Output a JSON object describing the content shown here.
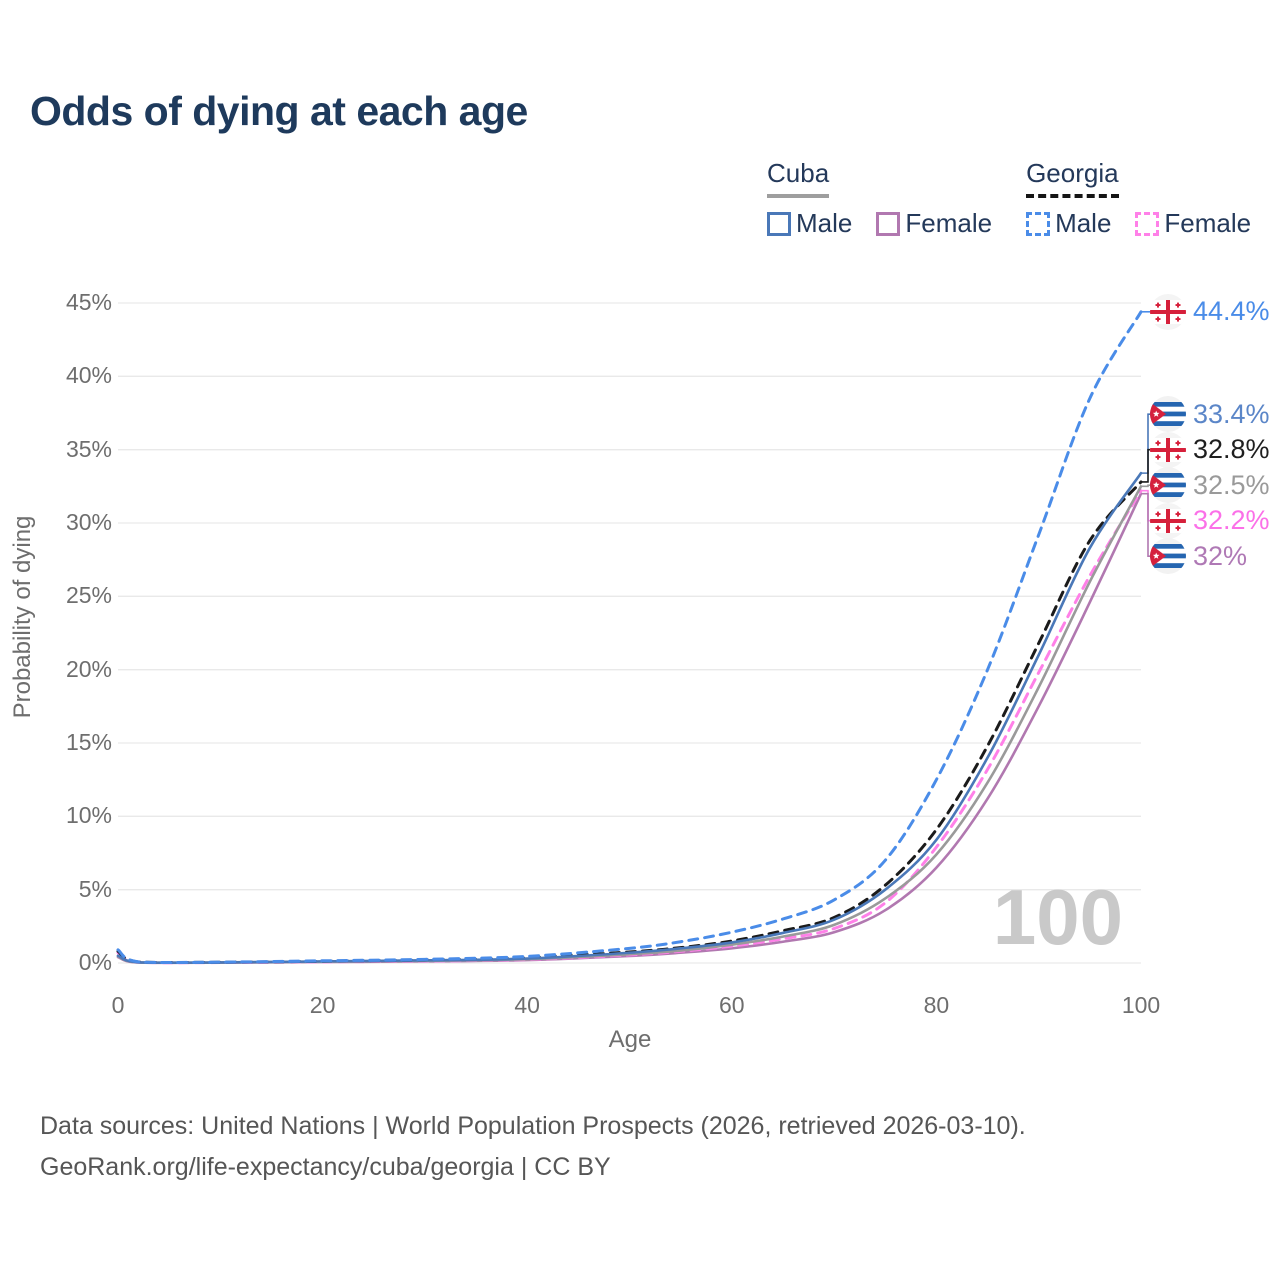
{
  "header": {
    "title": "Odds of dying at each age"
  },
  "legend": {
    "cuba": {
      "label": "Cuba",
      "male": "Male",
      "female": "Female"
    },
    "georgia": {
      "label": "Georgia",
      "male": "Male",
      "female": "Female"
    }
  },
  "chart_data": {
    "type": "line",
    "title": "Odds of dying at each age",
    "xlabel": "Age",
    "ylabel": "Probability of dying",
    "xlim": [
      0,
      100
    ],
    "ylim": [
      0,
      45
    ],
    "grid": "horizontal-only",
    "legend_position": "top-right",
    "watermark": "100",
    "x_ticks": [
      0,
      20,
      40,
      60,
      80,
      100
    ],
    "y_ticks": [
      {
        "value": 0,
        "label": "0%"
      },
      {
        "value": 5,
        "label": "5%"
      },
      {
        "value": 10,
        "label": "10%"
      },
      {
        "value": 15,
        "label": "15%"
      },
      {
        "value": 20,
        "label": "20%"
      },
      {
        "value": 25,
        "label": "25%"
      },
      {
        "value": 30,
        "label": "30%"
      },
      {
        "value": 35,
        "label": "35%"
      },
      {
        "value": 40,
        "label": "40%"
      },
      {
        "value": 45,
        "label": "45%"
      }
    ],
    "x": [
      0,
      2,
      10,
      20,
      30,
      40,
      50,
      55,
      60,
      65,
      70,
      75,
      80,
      85,
      90,
      95,
      100
    ],
    "series": [
      {
        "name": "Georgia Male",
        "flag": "georgia",
        "dashed": true,
        "color": "#4a8ce8",
        "label_color": "#4a8ce8",
        "end_label": "44.4%",
        "end_value": 44.4,
        "values": [
          0.9,
          0.08,
          0.06,
          0.15,
          0.25,
          0.45,
          1.0,
          1.45,
          2.1,
          3.0,
          4.3,
          7.0,
          12.5,
          20.0,
          29.2,
          38.5,
          44.4
        ]
      },
      {
        "name": "Cuba Male",
        "flag": "cuba",
        "dashed": false,
        "color": "#4a78b8",
        "label_color": "#5b86c8",
        "end_label": "33.4%",
        "end_value": 33.4,
        "values": [
          0.5,
          0.05,
          0.04,
          0.11,
          0.18,
          0.3,
          0.7,
          1.0,
          1.4,
          2.05,
          2.95,
          5.0,
          8.4,
          14.0,
          21.0,
          28.3,
          33.4
        ]
      },
      {
        "name": "Georgia",
        "flag": "georgia",
        "dashed": true,
        "color": "#1b1b1b",
        "label_color": "#1f1f1f",
        "end_label": "32.8%",
        "end_value": 32.8,
        "values": [
          0.8,
          0.07,
          0.05,
          0.12,
          0.2,
          0.35,
          0.75,
          1.05,
          1.5,
          2.2,
          3.1,
          5.3,
          9.1,
          14.8,
          21.8,
          28.8,
          32.8
        ]
      },
      {
        "name": "Cuba",
        "flag": "cuba",
        "dashed": false,
        "color": "#9a9a9a",
        "label_color": "#9a9a9a",
        "end_label": "32.5%",
        "end_value": 32.5,
        "values": [
          0.45,
          0.04,
          0.03,
          0.09,
          0.15,
          0.26,
          0.6,
          0.85,
          1.25,
          1.8,
          2.6,
          4.4,
          7.4,
          12.3,
          18.8,
          26.0,
          32.5
        ]
      },
      {
        "name": "Georgia Female",
        "flag": "georgia",
        "dashed": true,
        "color": "#ff80e8",
        "label_color": "#fb70e8",
        "end_label": "32.2%",
        "end_value": 32.2,
        "values": [
          0.7,
          0.05,
          0.03,
          0.08,
          0.13,
          0.24,
          0.55,
          0.8,
          1.15,
          1.65,
          2.35,
          4.1,
          7.9,
          13.2,
          19.8,
          26.4,
          32.2
        ]
      },
      {
        "name": "Cuba Female",
        "flag": "cuba",
        "dashed": false,
        "color": "#b178b0",
        "label_color": "#af79b5",
        "end_label": "32%",
        "end_value": 32.0,
        "values": [
          0.4,
          0.03,
          0.02,
          0.07,
          0.11,
          0.2,
          0.48,
          0.7,
          1.0,
          1.45,
          2.1,
          3.6,
          6.5,
          11.2,
          17.5,
          24.6,
          32.0
        ]
      }
    ]
  },
  "footer": {
    "line1": "Data sources: United Nations | World Population Prospects (2026, retrieved 2026-03-10).",
    "line2": "GeoRank.org/life-expectancy/cuba/georgia | CC BY"
  }
}
